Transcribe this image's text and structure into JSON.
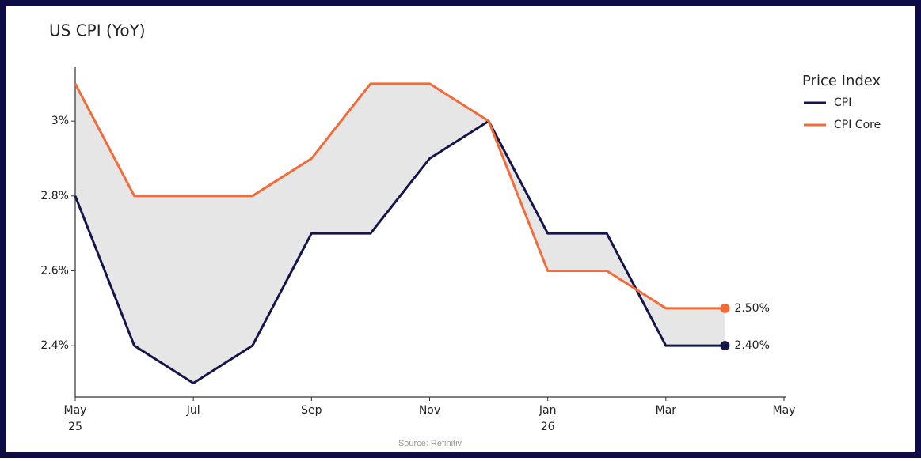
{
  "chart_data": {
    "type": "line",
    "title": "US CPI (YoY)",
    "source": "Source: Refinitiv",
    "legend_title": "Price Index",
    "legend": "right",
    "fill_between": true,
    "fill_color": "#e6e6e6",
    "x": [
      "2025-05",
      "2025-06",
      "2025-07",
      "2025-08",
      "2025-09",
      "2025-10",
      "2025-11",
      "2025-12",
      "2026-01",
      "2026-02",
      "2026-03",
      "2026-04"
    ],
    "xlim": [
      "2025-05",
      "2026-05"
    ],
    "xticks": [
      {
        "value": "2025-05",
        "label": [
          "May",
          "25"
        ]
      },
      {
        "value": "2025-07",
        "label": [
          "Jul"
        ]
      },
      {
        "value": "2025-09",
        "label": [
          "Sep"
        ]
      },
      {
        "value": "2025-11",
        "label": [
          "Nov"
        ]
      },
      {
        "value": "2026-01",
        "label": [
          "Jan",
          "26"
        ]
      },
      {
        "value": "2026-03",
        "label": [
          "Mar"
        ]
      },
      {
        "value": "2026-05",
        "label": [
          "May"
        ]
      }
    ],
    "ylim": [
      2.263,
      3.144
    ],
    "yticks": [
      {
        "value": 2.4,
        "label": "2.4%"
      },
      {
        "value": 2.6,
        "label": "2.6%"
      },
      {
        "value": 2.8,
        "label": "2.8%"
      },
      {
        "value": 3,
        "label": "3%"
      }
    ],
    "series": [
      {
        "name": "CPI",
        "color": "#14154a",
        "values": [
          2.8,
          2.4,
          2.3,
          2.4,
          2.7,
          2.7,
          2.9,
          3.0,
          2.7,
          2.7,
          2.4,
          2.4
        ],
        "value_labels": [
          null,
          null,
          null,
          null,
          null,
          null,
          null,
          null,
          null,
          null,
          null,
          "2.40%"
        ]
      },
      {
        "name": "CPI Core",
        "color": "#f26b38",
        "values": [
          3.1,
          2.8,
          2.8,
          2.8,
          2.9,
          3.1,
          3.1,
          3.0,
          2.6,
          2.6,
          2.5,
          2.5
        ],
        "value_labels": [
          null,
          null,
          null,
          null,
          null,
          null,
          null,
          null,
          null,
          null,
          null,
          "2.50%"
        ]
      }
    ]
  }
}
